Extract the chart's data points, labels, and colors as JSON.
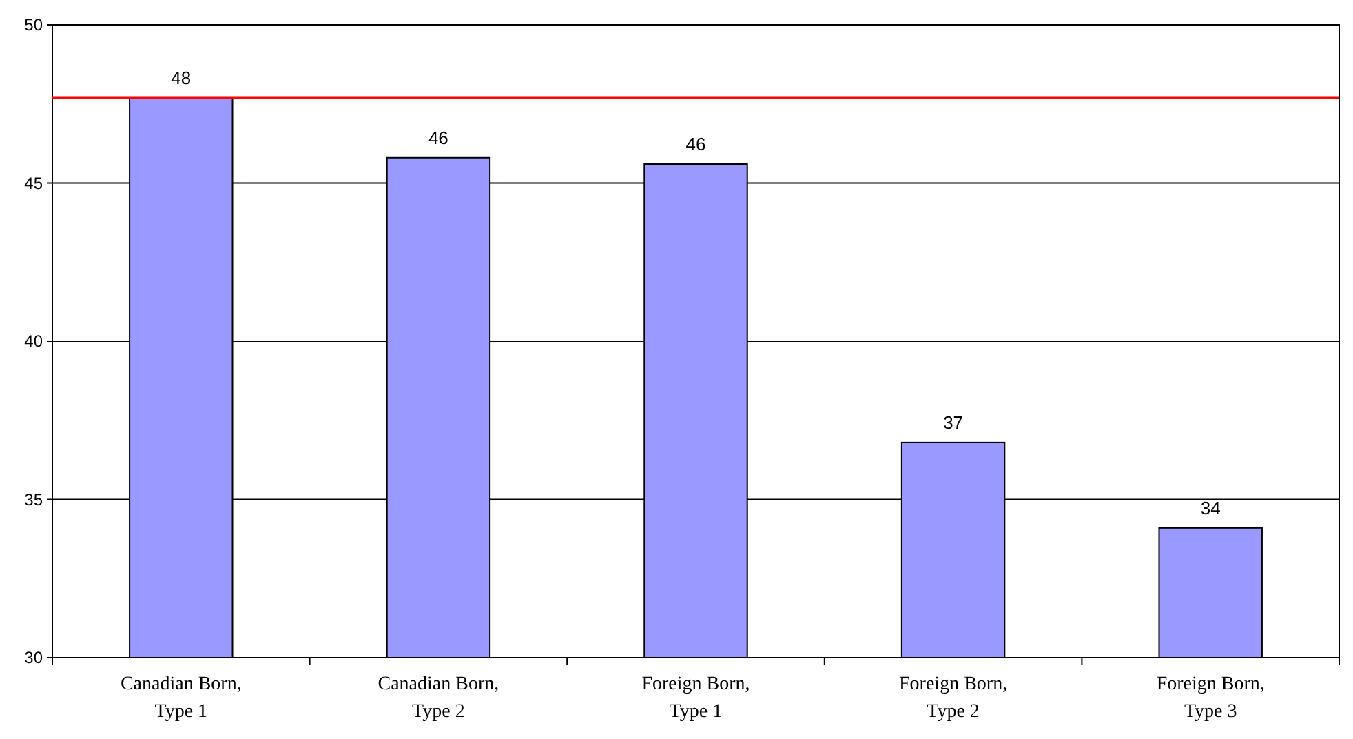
{
  "chart_data": {
    "type": "bar",
    "categories": [
      "Canadian Born, Type 1",
      "Canadian Born, Type 2",
      "Foreign Born, Type 1",
      "Foreign Born, Type 2",
      "Foreign Born, Type 3"
    ],
    "values": [
      47.7,
      45.8,
      45.6,
      36.8,
      34.1
    ],
    "value_labels": [
      "48",
      "46",
      "46",
      "37",
      "34"
    ],
    "color": "#9999ff",
    "ylim": [
      30,
      50
    ],
    "yticks": [
      30,
      35,
      40,
      45,
      50
    ],
    "grid": "y",
    "ref_lines": [
      {
        "axis": "y",
        "value": 47.7,
        "color": "#ff0000"
      }
    ]
  }
}
